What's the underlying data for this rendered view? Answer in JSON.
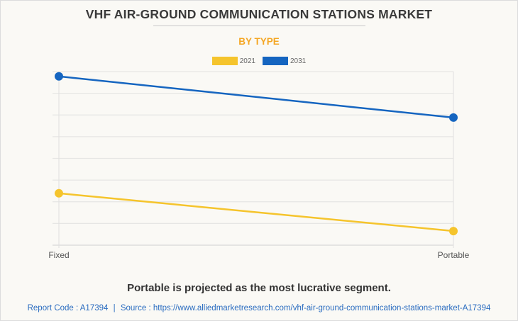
{
  "title": "VHF AIR-GROUND COMMUNICATION STATIONS MARKET",
  "subtitle": "BY TYPE",
  "insight": "Portable is projected as the most lucrative segment.",
  "source": {
    "report_code_label": "Report Code : A17394",
    "separator": "|",
    "source_label": "Source : https://www.alliedmarketresearch.com/vhf-air-ground-communication-stations-market-A17394"
  },
  "colors": {
    "2021": "#f5c42c",
    "2031": "#1565c0",
    "subtitle": "#f5a623"
  },
  "chart_data": {
    "type": "line",
    "title": "VHF AIR-GROUND COMMUNICATION STATIONS MARKET",
    "subtitle": "BY TYPE",
    "categories": [
      "Fixed",
      "Portable"
    ],
    "series": [
      {
        "name": "2021",
        "values": [
          2.39,
          0.65
        ],
        "color": "#f5c42c"
      },
      {
        "name": "2031",
        "values": [
          7.78,
          5.88
        ],
        "color": "#1565c0"
      }
    ],
    "xlabel": "",
    "ylabel": "",
    "ylim": [
      0,
      8
    ],
    "y_tick_labels_visible": false,
    "grid": true,
    "legend": "top-center",
    "note": "Y axis unlabeled; values are relative, in gridline units"
  }
}
